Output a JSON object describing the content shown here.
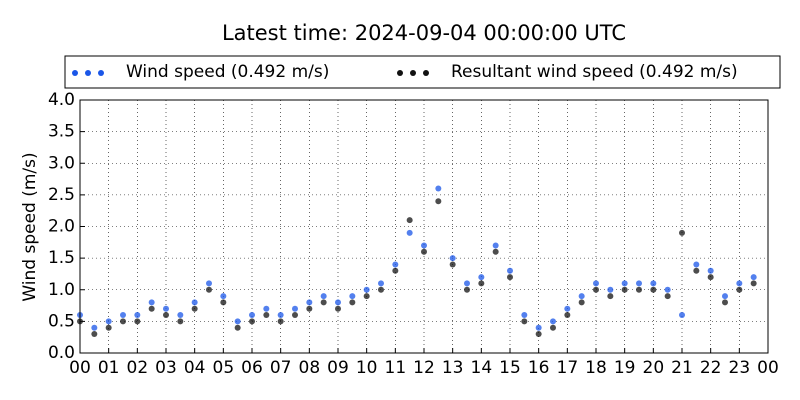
{
  "chart_data": {
    "type": "scatter",
    "title": "Latest time: 2024-09-04 00:00:00 UTC",
    "y_label": "Wind speed (m/s)",
    "x": [
      0,
      0.5,
      1,
      1.5,
      2,
      2.5,
      3,
      3.5,
      4,
      4.5,
      5,
      5.5,
      6,
      6.5,
      7,
      7.5,
      8,
      8.5,
      9,
      9.5,
      10,
      10.5,
      11,
      11.5,
      12,
      12.5,
      13,
      13.5,
      14,
      14.5,
      15,
      15.5,
      16,
      16.5,
      17,
      17.5,
      18,
      18.5,
      19,
      19.5,
      20,
      20.5,
      21,
      21.5,
      22,
      22.5,
      23,
      23.5
    ],
    "series": [
      {
        "name": "Wind speed (0.492 m/s)",
        "color": "#1a56e8",
        "values": [
          0.6,
          0.4,
          0.5,
          0.6,
          0.6,
          0.8,
          0.7,
          0.6,
          0.8,
          1.1,
          0.9,
          0.5,
          0.6,
          0.7,
          0.6,
          0.7,
          0.8,
          0.9,
          0.8,
          0.9,
          1.0,
          1.1,
          1.4,
          1.9,
          1.7,
          2.6,
          1.5,
          1.1,
          1.2,
          1.7,
          1.3,
          0.6,
          0.4,
          0.5,
          0.7,
          0.9,
          1.1,
          1.0,
          1.1,
          1.1,
          1.1,
          1.0,
          0.6,
          1.4,
          1.3,
          0.9,
          1.1,
          1.2
        ]
      },
      {
        "name": "Resultant wind speed (0.492 m/s)",
        "color": "#111111",
        "values": [
          0.5,
          0.3,
          0.4,
          0.5,
          0.5,
          0.7,
          0.6,
          0.5,
          0.7,
          1.0,
          0.8,
          0.4,
          0.5,
          0.6,
          0.5,
          0.6,
          0.7,
          0.8,
          0.7,
          0.8,
          0.9,
          1.0,
          1.3,
          2.1,
          1.6,
          2.4,
          1.4,
          1.0,
          1.1,
          1.6,
          1.2,
          0.5,
          0.3,
          0.4,
          0.6,
          0.8,
          1.0,
          0.9,
          1.0,
          1.0,
          1.0,
          0.9,
          1.9,
          1.3,
          1.2,
          0.8,
          1.0,
          1.1
        ]
      }
    ],
    "xlim": [
      0,
      24
    ],
    "xticks": [
      {
        "value": 0,
        "label": "00"
      },
      {
        "value": 1,
        "label": "01"
      },
      {
        "value": 2,
        "label": "02"
      },
      {
        "value": 3,
        "label": "03"
      },
      {
        "value": 4,
        "label": "04"
      },
      {
        "value": 5,
        "label": "05"
      },
      {
        "value": 6,
        "label": "06"
      },
      {
        "value": 7,
        "label": "07"
      },
      {
        "value": 8,
        "label": "08"
      },
      {
        "value": 9,
        "label": "09"
      },
      {
        "value": 10,
        "label": "10"
      },
      {
        "value": 11,
        "label": "11"
      },
      {
        "value": 12,
        "label": "12"
      },
      {
        "value": 13,
        "label": "13"
      },
      {
        "value": 14,
        "label": "14"
      },
      {
        "value": 15,
        "label": "15"
      },
      {
        "value": 16,
        "label": "16"
      },
      {
        "value": 17,
        "label": "17"
      },
      {
        "value": 18,
        "label": "18"
      },
      {
        "value": 19,
        "label": "19"
      },
      {
        "value": 20,
        "label": "20"
      },
      {
        "value": 21,
        "label": "21"
      },
      {
        "value": 22,
        "label": "22"
      },
      {
        "value": 23,
        "label": "23"
      },
      {
        "value": 24,
        "label": "00"
      }
    ],
    "ylim": [
      0,
      4
    ],
    "yticks": [
      {
        "value": 0,
        "label": "0.0"
      },
      {
        "value": 0.5,
        "label": "0.5"
      },
      {
        "value": 1,
        "label": "1.0"
      },
      {
        "value": 1.5,
        "label": "1.5"
      },
      {
        "value": 2,
        "label": "2.0"
      },
      {
        "value": 2.5,
        "label": "2.5"
      },
      {
        "value": 3,
        "label": "3.0"
      },
      {
        "value": 3.5,
        "label": "3.5"
      },
      {
        "value": 4,
        "label": "4.0"
      }
    ],
    "grid": true
  }
}
